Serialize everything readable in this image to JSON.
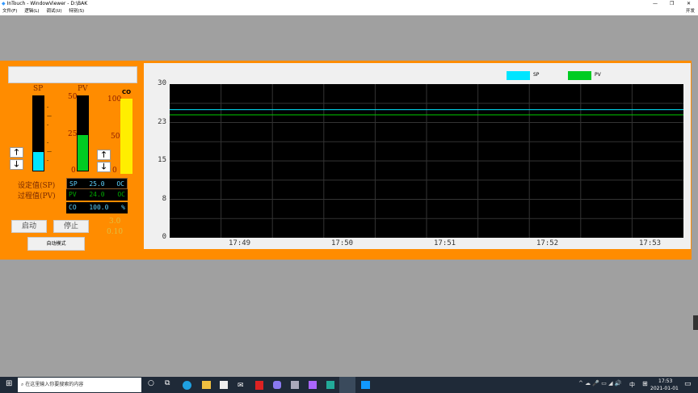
{
  "window": {
    "title": "InTouch - WindowViewer - D:\\BAK",
    "menu": [
      "文件(F)",
      "逻辑(L)",
      "调试(U)",
      "特别(S)"
    ],
    "corner_label": "开发"
  },
  "panel": {
    "sp_label": "SP",
    "pv_label": "PV",
    "co_label": "CO",
    "pv_scale": [
      "50",
      "25",
      "0"
    ],
    "co_scale": [
      "100",
      "50",
      "0"
    ],
    "sp_level_fraction": 0.25,
    "pv_level_fraction": 0.48,
    "co_level_fraction": 1.0,
    "setpoint_label": "设定值(SP)",
    "process_label": "过程值(PV)",
    "displays": [
      {
        "tag": "SP",
        "value": "25.0",
        "unit": "OC"
      },
      {
        "tag": "PV",
        "value": "24.0",
        "unit": "OC"
      },
      {
        "tag": "CO",
        "value": "100.0",
        "unit": "%"
      }
    ],
    "start_button": "启动",
    "stop_button": "停止",
    "auto_button": "自动模式",
    "param1": "3.0",
    "param2": "0.10"
  },
  "chart_data": {
    "type": "line",
    "ylim": [
      0,
      30
    ],
    "yticks": [
      "30",
      "23",
      "15",
      "8",
      "0"
    ],
    "xticks": [
      "17:49",
      "17:50",
      "17:51",
      "17:52",
      "17:53"
    ],
    "legend_placement": "top",
    "series": [
      {
        "name": "SP",
        "color": "#00e5ff",
        "values": [
          25,
          25
        ]
      },
      {
        "name": "PV",
        "color": "#00cc00",
        "values": [
          24,
          24
        ]
      }
    ],
    "grid": true
  },
  "taskbar": {
    "search_placeholder": "在这里输入你要搜索的内容",
    "time": "17:53",
    "date": "2021-01-01",
    "ime": "中"
  }
}
